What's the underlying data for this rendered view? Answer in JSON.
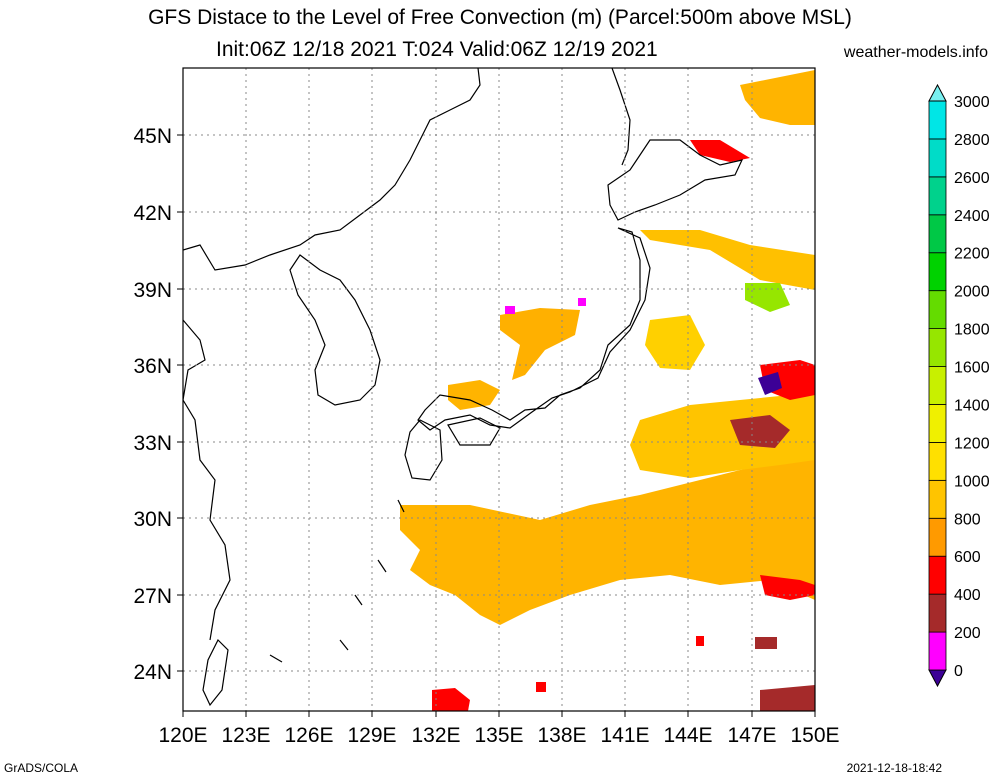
{
  "title_line1": "GFS Distace to the Level of Free Convection (m) (Parcel:500m above MSL)",
  "title_line2": "Init:06Z 12/18 2021 T:024 Valid:06Z 12/19 2021",
  "site": "weather-models.info",
  "footer_left": "GrADS/COLA",
  "footer_right": "2021-12-18-18:42",
  "lat_labels": [
    "45N",
    "42N",
    "39N",
    "36N",
    "33N",
    "30N",
    "27N",
    "24N"
  ],
  "lon_labels": [
    "120E",
    "123E",
    "126E",
    "129E",
    "132E",
    "135E",
    "138E",
    "141E",
    "144E",
    "147E",
    "150E"
  ],
  "colorbar": {
    "labels": [
      "0",
      "200",
      "400",
      "600",
      "800",
      "1000",
      "1200",
      "1400",
      "1600",
      "1800",
      "2000",
      "2200",
      "2400",
      "2600",
      "2800",
      "3000"
    ],
    "colors": [
      "#3c0096",
      "#ff00ff",
      "#a52a2a",
      "#ff0000",
      "#ff9a00",
      "#ffc400",
      "#ffe000",
      "#f0f000",
      "#c8f000",
      "#96e600",
      "#64dc00",
      "#00d200",
      "#00c846",
      "#00d28c",
      "#00dcc8",
      "#00e6e6",
      "#78f0f0"
    ]
  }
}
